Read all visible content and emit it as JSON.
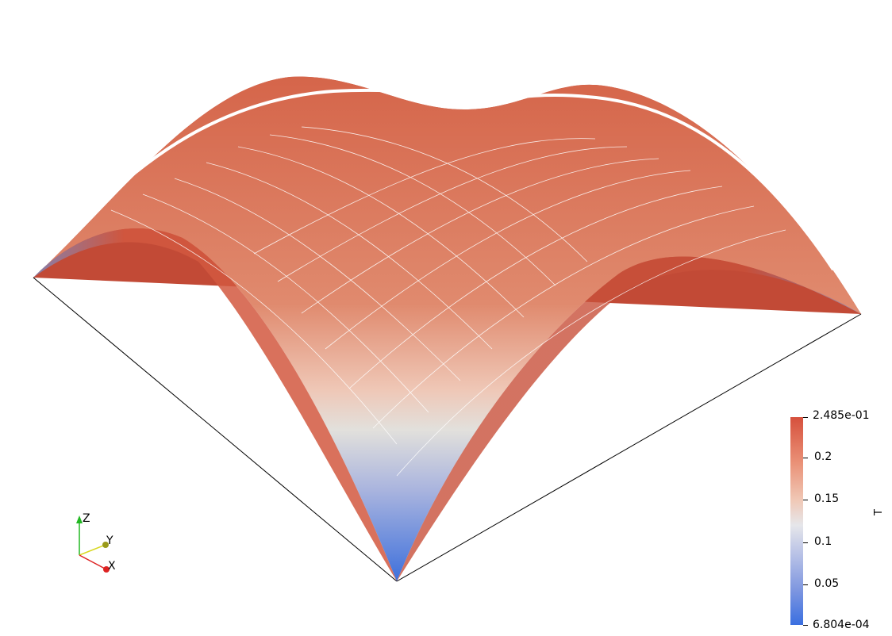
{
  "colorbar": {
    "title": "T",
    "max_label": "2.485e-01",
    "min_label": "6.804e-04",
    "ticks": [
      "0.2",
      "0.15",
      "0.1",
      "0.05"
    ],
    "colors": {
      "high": "#d6503c",
      "mid": "#e6e6ea",
      "low": "#3a6fe0"
    }
  },
  "axes_triad": {
    "x": "X",
    "y": "Y",
    "z": "Z"
  }
}
